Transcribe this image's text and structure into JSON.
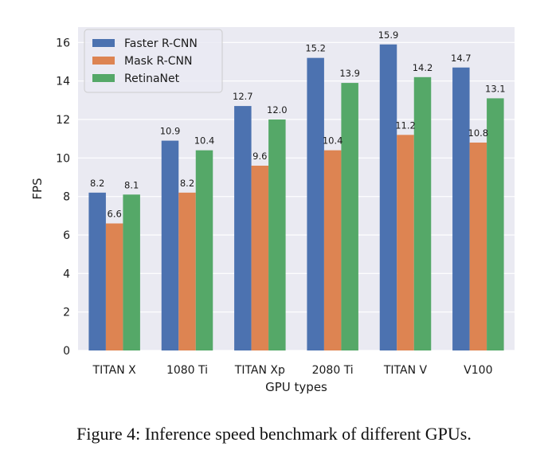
{
  "caption": "Figure 4: Inference speed benchmark of different GPUs.",
  "chart_data": {
    "type": "bar",
    "xlabel": "GPU types",
    "ylabel": "FPS",
    "ylim": [
      0,
      16.8
    ],
    "yticks": [
      0,
      2,
      4,
      6,
      8,
      10,
      12,
      14,
      16
    ],
    "categories": [
      "TITAN X",
      "1080 Ti",
      "TITAN Xp",
      "2080 Ti",
      "TITAN V",
      "V100"
    ],
    "series": [
      {
        "name": "Faster R-CNN",
        "color": "#4c72b0",
        "values": [
          8.2,
          10.9,
          12.7,
          15.2,
          15.9,
          14.7
        ]
      },
      {
        "name": "Mask R-CNN",
        "color": "#dd8452",
        "values": [
          6.6,
          8.2,
          9.6,
          10.4,
          11.2,
          10.8
        ]
      },
      {
        "name": "RetinaNet",
        "color": "#55a868",
        "values": [
          8.1,
          10.4,
          12.0,
          13.9,
          14.2,
          13.1
        ]
      }
    ],
    "data_labels": true,
    "grid": true,
    "background": "#eaeaf2",
    "legend": "top-left"
  }
}
